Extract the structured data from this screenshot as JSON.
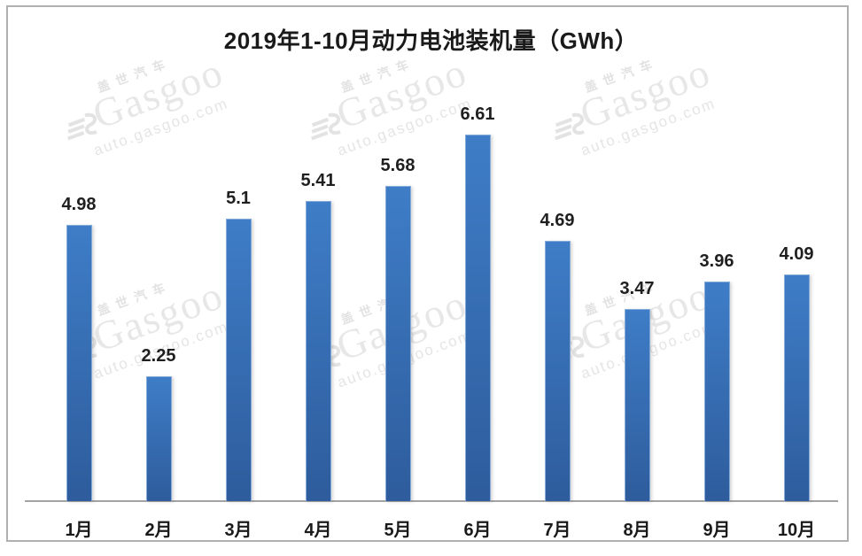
{
  "chart_data": {
    "type": "bar",
    "title": "2019年1-10月动力电池装机量（GWh）",
    "categories": [
      "1月",
      "2月",
      "3月",
      "4月",
      "5月",
      "6月",
      "7月",
      "8月",
      "9月",
      "10月"
    ],
    "values": [
      4.98,
      2.25,
      5.1,
      5.41,
      5.68,
      6.61,
      4.69,
      3.47,
      3.96,
      4.09
    ],
    "xlabel": "",
    "ylabel": "",
    "ylim": [
      0,
      7
    ],
    "grid": "off",
    "legend": "none",
    "data_labels": "above-bars",
    "bar_color_top": "#3e7dc7",
    "bar_color_bottom": "#2e5c9c",
    "axis_line_color": "#a3a3a3",
    "label_color": "#1f1f1f"
  },
  "watermark": {
    "brand_cn": "盖世汽车",
    "brand_en": "Gasgoo",
    "site": "auto.gasgoo.com",
    "logo_icon": "gasgoo-logo-icon",
    "color": "#e7e7e7"
  },
  "frame": {
    "border_color": "#b0b0b0"
  }
}
